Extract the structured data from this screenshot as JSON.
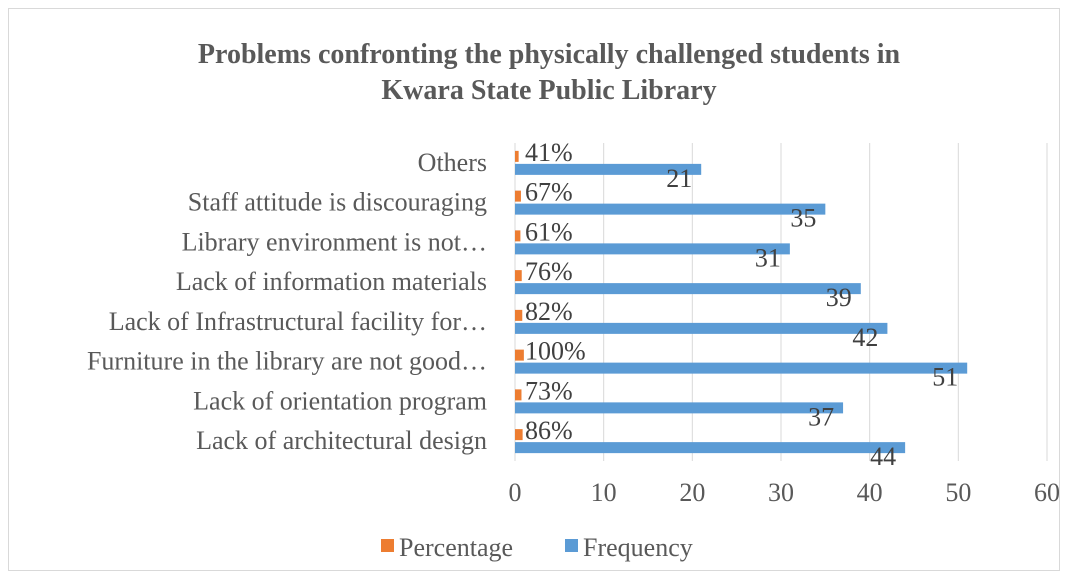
{
  "chart_data": {
    "type": "bar",
    "orientation": "horizontal",
    "title": "Problems confronting the physically challenged students in Kwara State Public Library",
    "title_lines": [
      "Problems confronting the physically challenged students in",
      "Kwara State Public Library"
    ],
    "categories": [
      "Lack of architectural design",
      "Lack of orientation program",
      "Furniture in the library are not good…",
      "Lack of Infrastructural facility for…",
      "Lack of information materials",
      "Library environment is not…",
      "Staff attitude is discouraging",
      "Others"
    ],
    "series": [
      {
        "name": "Percentage",
        "color": "#ed7d31",
        "values": [
          0.86,
          0.73,
          1.0,
          0.82,
          0.76,
          0.61,
          0.67,
          0.41
        ],
        "labels": [
          "86%",
          "73%",
          "100%",
          "82%",
          "76%",
          "61%",
          "67%",
          "41%"
        ]
      },
      {
        "name": "Frequency",
        "color": "#5b9bd5",
        "values": [
          44,
          37,
          51,
          42,
          39,
          31,
          35,
          21
        ],
        "labels": [
          "44",
          "37",
          "51",
          "42",
          "39",
          "31",
          "35",
          "21"
        ]
      }
    ],
    "xlim": [
      0,
      60
    ],
    "xticks": [
      "0",
      "10",
      "20",
      "30",
      "40",
      "50",
      "60"
    ],
    "grid": true,
    "legend_position": "bottom"
  }
}
